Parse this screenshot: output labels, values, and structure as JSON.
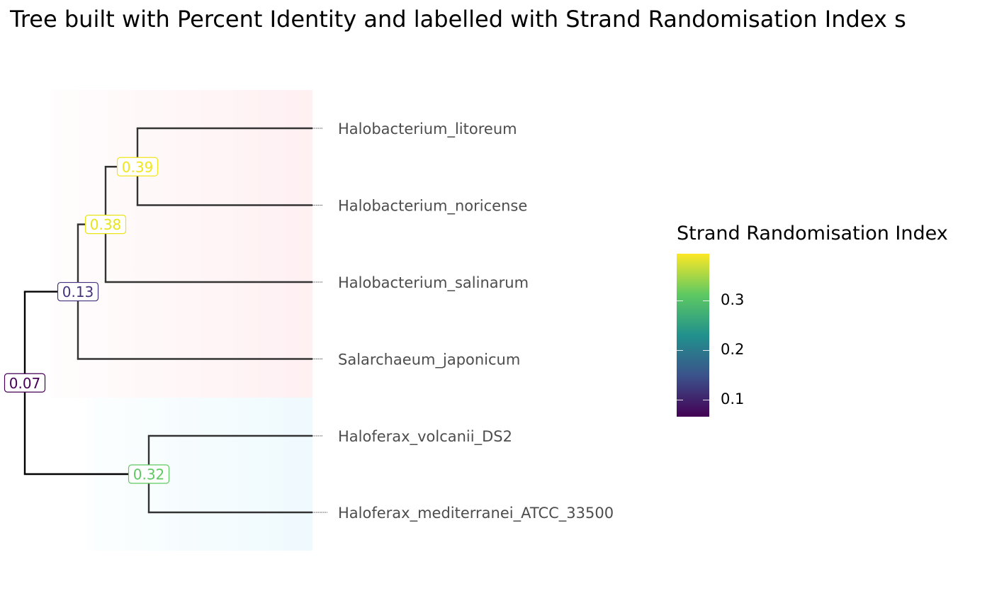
{
  "title": "Tree built with Percent Identity and labelled with Strand Randomisation Index s",
  "colors": {
    "clade_a_tint": "#fff0f2",
    "clade_b_tint": "#effafe",
    "branch": "#333333"
  },
  "tips": [
    {
      "id": "t1",
      "label": "Halobacterium_litoreum"
    },
    {
      "id": "t2",
      "label": "Halobacterium_noricense"
    },
    {
      "id": "t3",
      "label": "Halobacterium_salinarum"
    },
    {
      "id": "t4",
      "label": "Salarchaeum_japonicum"
    },
    {
      "id": "t5",
      "label": "Haloferax_volcanii_DS2"
    },
    {
      "id": "t6",
      "label": "Haloferax_mediterranei_ATCC_33500"
    }
  ],
  "nodes": [
    {
      "id": "root",
      "label": "0.07",
      "value": 0.07,
      "color": "#440154",
      "children": [
        "n13",
        "n32"
      ]
    },
    {
      "id": "n13",
      "label": "0.13",
      "value": 0.13,
      "color": "#46337e",
      "children": [
        "n38",
        "t4"
      ]
    },
    {
      "id": "n38",
      "label": "0.38",
      "value": 0.38,
      "color": "#e8e419",
      "children": [
        "n39",
        "t3"
      ]
    },
    {
      "id": "n39",
      "label": "0.39",
      "value": 0.39,
      "color": "#f2e51d",
      "children": [
        "t1",
        "t2"
      ]
    },
    {
      "id": "n32",
      "label": "0.32",
      "value": 0.32,
      "color": "#5ec962",
      "children": [
        "t5",
        "t6"
      ]
    }
  ],
  "legend": {
    "title": "Strand Randomisation Index",
    "min": 0.065,
    "max": 0.395,
    "ticks": [
      {
        "value": 0.1,
        "label": "0.1"
      },
      {
        "value": 0.2,
        "label": "0.2"
      },
      {
        "value": 0.3,
        "label": "0.3"
      }
    ]
  }
}
